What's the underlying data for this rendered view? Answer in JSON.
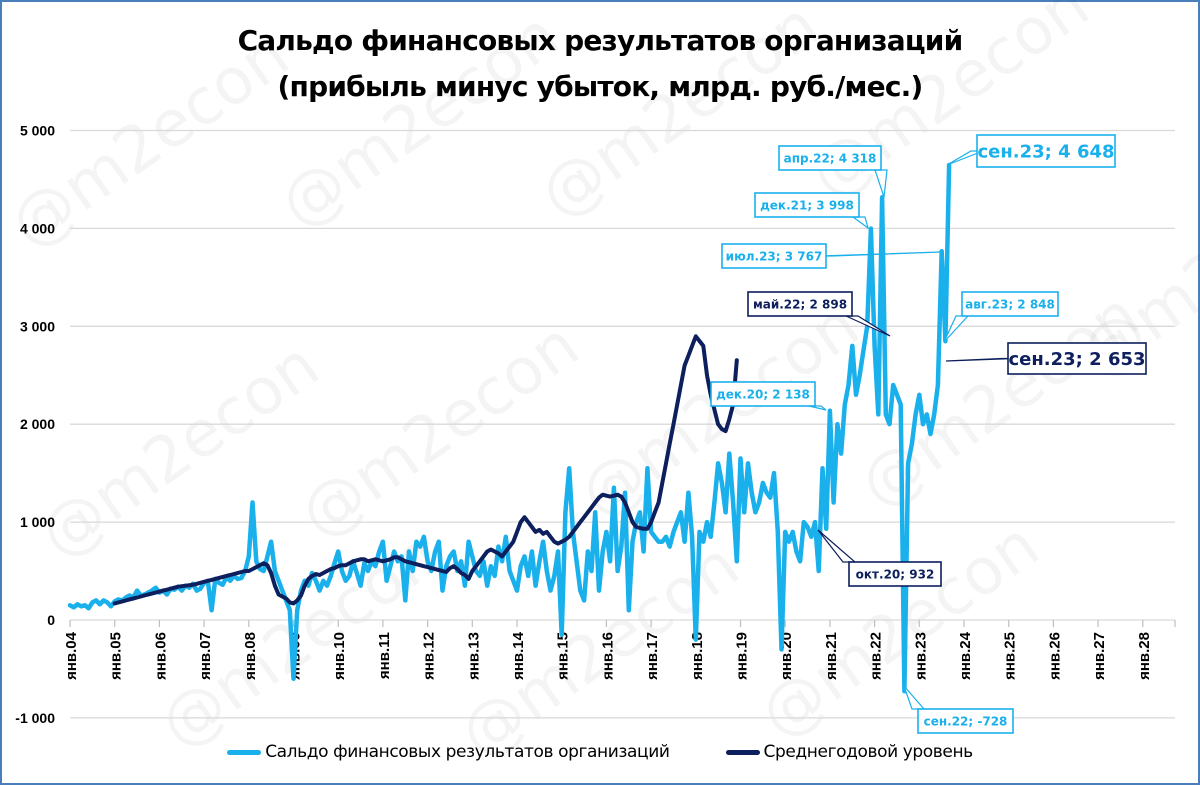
{
  "title_line1": "Сальдо финансовых результатов организаций",
  "title_line2": "(прибыль минус убыток, млрд. руб./мес.)",
  "watermark": "@m2econ",
  "colors": {
    "series_monthly": "#1ab0ec",
    "series_avg": "#0d1f5c",
    "grid": "#d9d9d9",
    "frame": "#4a7ebb"
  },
  "legend": {
    "items": [
      {
        "label": "Сальдо финансовых результатов организаций",
        "color": "#1ab0ec"
      },
      {
        "label": "Среднегодовой уровень",
        "color": "#0d1f5c"
      }
    ]
  },
  "annotations": [
    {
      "text": "апр.22; 4 318",
      "series": "monthly"
    },
    {
      "text": "дек.21; 3 998",
      "series": "monthly"
    },
    {
      "text": "июл.23; 3 767",
      "series": "monthly"
    },
    {
      "text": "сен.23; 4 648",
      "series": "monthly"
    },
    {
      "text": "авг.23; 2 848",
      "series": "monthly"
    },
    {
      "text": "дек.20; 2 138",
      "series": "monthly"
    },
    {
      "text": "сен.22; -728",
      "series": "monthly"
    },
    {
      "text": "май.22; 2 898",
      "series": "avg"
    },
    {
      "text": "сен.23; 2 653",
      "series": "avg"
    },
    {
      "text": "окт.20; 932",
      "series": "avg"
    }
  ],
  "chart_data": {
    "type": "line",
    "title": "Сальдо финансовых результатов организаций (прибыль минус убыток, млрд. руб./мес.)",
    "xlabel": "",
    "ylabel": "",
    "ylim": [
      -1000,
      5000
    ],
    "yticks": [
      "5 000",
      "4 000",
      "3 000",
      "2 000",
      "1 000",
      "0",
      "-1 000"
    ],
    "ytick_values": [
      5000,
      4000,
      3000,
      2000,
      1000,
      0,
      -1000
    ],
    "xticks": [
      "янв.04",
      "янв.05",
      "янв.06",
      "янв.07",
      "янв.08",
      "янв.09",
      "янв.10",
      "янв.11",
      "янв.12",
      "янв.13",
      "янв.14",
      "янв.15",
      "янв.16",
      "янв.17",
      "янв.18",
      "янв.19",
      "янв.20",
      "янв.21",
      "янв.22",
      "янв.23",
      "янв.24",
      "янв.25",
      "янв.26",
      "янв.27",
      "янв.28"
    ],
    "grid": true,
    "legend_position": "bottom",
    "x_start": "янв.04",
    "x_frequency": "monthly",
    "series": [
      {
        "name": "Сальдо финансовых результатов организаций",
        "start_index": 0,
        "values": [
          150,
          130,
          160,
          140,
          150,
          120,
          180,
          200,
          160,
          200,
          180,
          140,
          190,
          210,
          200,
          230,
          250,
          230,
          300,
          250,
          260,
          280,
          300,
          330,
          280,
          300,
          260,
          320,
          310,
          340,
          300,
          350,
          330,
          370,
          300,
          320,
          380,
          400,
          100,
          420,
          380,
          360,
          440,
          400,
          450,
          420,
          430,
          500,
          650,
          1200,
          600,
          520,
          500,
          650,
          800,
          500,
          400,
          300,
          200,
          100,
          -600,
          100,
          300,
          400,
          350,
          480,
          400,
          300,
          400,
          350,
          450,
          580,
          700,
          500,
          400,
          450,
          600,
          480,
          350,
          580,
          500,
          600,
          550,
          700,
          800,
          400,
          550,
          700,
          600,
          650,
          200,
          700,
          500,
          800,
          750,
          850,
          600,
          500,
          700,
          800,
          300,
          550,
          650,
          700,
          500,
          600,
          350,
          800,
          650,
          500,
          450,
          600,
          350,
          550,
          450,
          750,
          600,
          850,
          500,
          400,
          300,
          550,
          650,
          450,
          700,
          350,
          600,
          800,
          500,
          300,
          450,
          700,
          -150,
          1100,
          1550,
          900,
          600,
          300,
          200,
          700,
          500,
          1100,
          300,
          700,
          900,
          600,
          1350,
          500,
          750,
          1300,
          100,
          800,
          1000,
          1100,
          700,
          1550,
          900,
          850,
          800,
          800,
          850,
          750,
          900,
          1000,
          1100,
          800,
          1300,
          850,
          -200,
          900,
          800,
          1000,
          850,
          1200,
          1600,
          1400,
          1100,
          1700,
          1200,
          600,
          1650,
          1100,
          1600,
          1300,
          1100,
          1200,
          1400,
          1300,
          1250,
          1500,
          900,
          -300,
          900,
          800,
          900,
          700,
          600,
          1000,
          950,
          850,
          1000,
          500,
          1550,
          932,
          2138,
          1200,
          2000,
          1700,
          2200,
          2400,
          2800,
          2300,
          2500,
          2750,
          3000,
          3998,
          2800,
          2100,
          4318,
          2100,
          2000,
          2400,
          2300,
          2200,
          -728,
          1600,
          1800,
          2100,
          2300,
          2000,
          2100,
          1900,
          2100,
          2400,
          3767,
          2848,
          4648
        ]
      },
      {
        "name": "Среднегодовой уровень",
        "start_index": 12,
        "values": [
          170,
          180,
          190,
          200,
          210,
          220,
          230,
          240,
          250,
          260,
          270,
          280,
          290,
          300,
          310,
          320,
          330,
          340,
          345,
          350,
          355,
          360,
          370,
          380,
          390,
          400,
          410,
          420,
          430,
          440,
          450,
          460,
          470,
          480,
          490,
          500,
          500,
          520,
          540,
          560,
          580,
          560,
          480,
          350,
          260,
          240,
          220,
          180,
          170,
          200,
          250,
          350,
          420,
          450,
          470,
          460,
          480,
          500,
          520,
          530,
          550,
          560,
          560,
          580,
          600,
          610,
          620,
          620,
          600,
          610,
          620,
          610,
          600,
          610,
          620,
          640,
          640,
          620,
          600,
          590,
          580,
          570,
          560,
          550,
          540,
          530,
          520,
          510,
          500,
          490,
          530,
          550,
          520,
          480,
          460,
          420,
          500,
          550,
          600,
          650,
          700,
          720,
          700,
          680,
          650,
          700,
          750,
          800,
          900,
          1000,
          1050,
          1000,
          950,
          900,
          920,
          880,
          900,
          850,
          800,
          780,
          800,
          820,
          850,
          900,
          950,
          1000,
          1050,
          1100,
          1150,
          1200,
          1250,
          1280,
          1270,
          1260,
          1270,
          1280,
          1260,
          1200,
          1100,
          1000,
          950,
          940,
          932,
          932,
          1000,
          1100,
          1200,
          1400,
          1600,
          1800,
          2000,
          2200,
          2400,
          2600,
          2700,
          2800,
          2898,
          2850,
          2800,
          2500,
          2300,
          2150,
          2000,
          1950,
          1930,
          2050,
          2200,
          2653
        ]
      }
    ]
  }
}
